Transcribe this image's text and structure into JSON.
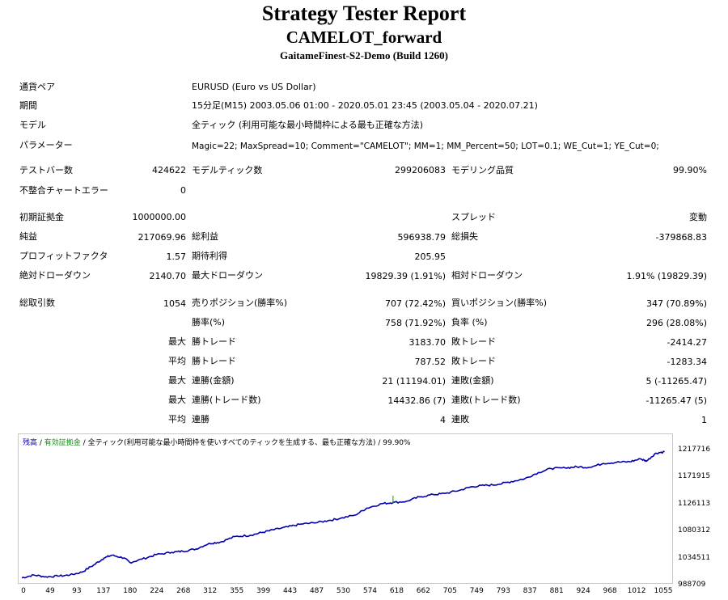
{
  "header": {
    "title": "Strategy Tester Report",
    "expert": "CAMELOT_forward",
    "server": "GaitameFinest-S2-Demo (Build 1260)"
  },
  "settings": {
    "symbol_label": "通貨ペア",
    "symbol_value": "EURUSD (Euro vs US Dollar)",
    "period_label": "期間",
    "period_value": "15分足(M15) 2003.05.06 01:00 - 2020.05.01 23:45 (2003.05.04 - 2020.07.21)",
    "model_label": "モデル",
    "model_value": "全ティック (利用可能な最小時間枠による最も正確な方法)",
    "params_label": "パラメーター",
    "params_value": "Magic=22; MaxSpread=10; Comment=\"CAMELOT\"; MM=1; MM_Percent=50; LOT=0.1; WE_Cut=1; YE_Cut=0;"
  },
  "stats": {
    "bars_label": "テストバー数",
    "bars_value": "424622",
    "ticks_label": "モデルティック数",
    "ticks_value": "299206083",
    "quality_label": "モデリング品質",
    "quality_value": "99.90%",
    "mismatch_label": "不整合チャートエラー",
    "mismatch_value": "0",
    "deposit_label": "初期証拠金",
    "deposit_value": "1000000.00",
    "spread_label": "スプレッド",
    "spread_value": "変動",
    "net_label": "純益",
    "net_value": "217069.96",
    "gross_profit_label": "総利益",
    "gross_profit_value": "596938.79",
    "gross_loss_label": "総損失",
    "gross_loss_value": "-379868.83",
    "pf_label": "プロフィットファクタ",
    "pf_value": "1.57",
    "payoff_label": "期待利得",
    "payoff_value": "205.95",
    "abs_dd_label": "絶対ドローダウン",
    "abs_dd_value": "2140.70",
    "max_dd_label": "最大ドローダウン",
    "max_dd_value": "19829.39 (1.91%)",
    "rel_dd_label": "相対ドローダウン",
    "rel_dd_value": "1.91% (19829.39)",
    "trades_label": "総取引数",
    "trades_value": "1054",
    "short_label": "売りポジション(勝率%)",
    "short_value": "707 (72.42%)",
    "long_label": "買いポジション(勝率%)",
    "long_value": "347 (70.89%)",
    "win_label": "勝率(%)",
    "win_value": "758 (71.92%)",
    "loss_label": "負率 (%)",
    "loss_value": "296 (28.08%)",
    "max_word": "最大",
    "avg_word": "平均",
    "largest_win_label": "勝トレード",
    "largest_win_value": "3183.70",
    "largest_loss_label": "敗トレード",
    "largest_loss_value": "-2414.27",
    "avg_win_label": "勝トレード",
    "avg_win_value": "787.52",
    "avg_loss_label": "敗トレード",
    "avg_loss_value": "-1283.34",
    "cons_win_money_label": "連勝(金額)",
    "cons_win_money_value": "21 (11194.01)",
    "cons_loss_money_label": "連敗(金額)",
    "cons_loss_money_value": "5 (-11265.47)",
    "cons_win_count_label": "連勝(トレード数)",
    "cons_win_count_value": "14432.86 (7)",
    "cons_loss_count_label": "連敗(トレード数)",
    "cons_loss_count_value": "-11265.47 (5)",
    "avg_cons_win_label": "連勝",
    "avg_cons_win_value": "4",
    "avg_cons_loss_label": "連敗",
    "avg_cons_loss_value": "1"
  },
  "legend": {
    "balance": "残高",
    "sep1": " / ",
    "equity": "有効証拠金",
    "sep2": " / ",
    "rest": "全ティック(利用可能な最小時間枠を使いすべてのティックを生成する、最も正確な方法) / 99.90%"
  },
  "chart_data": {
    "type": "line",
    "y_ticks": [
      "1217716",
      "1171915",
      "1126113",
      "1080312",
      "1034511",
      "988709"
    ],
    "x_ticks": [
      "0",
      "49",
      "93",
      "137",
      "180",
      "224",
      "268",
      "312",
      "355",
      "399",
      "443",
      "487",
      "530",
      "574",
      "618",
      "662",
      "705",
      "749",
      "793",
      "837",
      "881",
      "924",
      "968",
      "1012",
      "1055"
    ],
    "ylim": [
      988709,
      1240000
    ],
    "xlim": [
      0,
      1080
    ],
    "colors": {
      "balance": "#0000b0",
      "equity": "#00a000"
    },
    "series": [
      {
        "name": "残高",
        "x": [
          0,
          20,
          40,
          60,
          80,
          100,
          120,
          137,
          150,
          170,
          180,
          200,
          224,
          250,
          268,
          290,
          312,
          330,
          355,
          380,
          399,
          420,
          443,
          465,
          487,
          510,
          530,
          555,
          574,
          600,
          618,
          640,
          662,
          685,
          705,
          730,
          749,
          770,
          793,
          815,
          837,
          860,
          881,
          905,
          924,
          945,
          968,
          990,
          1012,
          1030,
          1040,
          1055,
          1070
        ],
        "values": [
          995000,
          1000000,
          997000,
          998000,
          1000000,
          1005000,
          1018000,
          1030000,
          1035000,
          1030000,
          1022000,
          1028000,
          1036000,
          1040000,
          1042000,
          1046000,
          1056000,
          1058000,
          1068000,
          1070000,
          1075000,
          1080000,
          1085000,
          1090000,
          1092000,
          1096000,
          1100000,
          1106000,
          1118000,
          1126000,
          1128000,
          1130000,
          1138000,
          1142000,
          1144000,
          1150000,
          1156000,
          1158000,
          1160000,
          1165000,
          1170000,
          1181000,
          1188000,
          1189000,
          1191000,
          1190000,
          1197000,
          1199000,
          1200000,
          1205000,
          1201000,
          1215000,
          1217716
        ]
      },
      {
        "name": "有効証拠金",
        "x": [
          618
        ],
        "values": [
          1140000
        ],
        "spike_from": 1126000
      }
    ]
  }
}
